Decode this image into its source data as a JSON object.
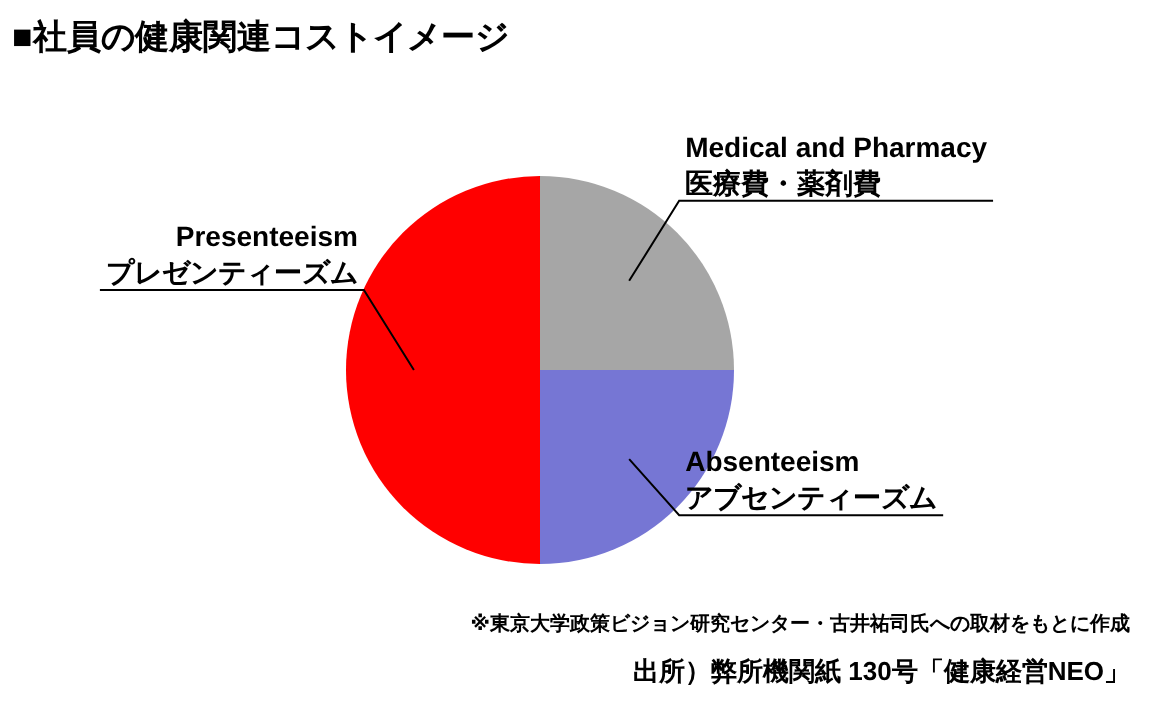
{
  "chart_data": {
    "type": "pie",
    "title": "■社員の健康関連コストイメージ",
    "categories": [
      "Medical and Pharmacy\n医療費・薬剤費",
      "Absenteeism\nアブセンティーズム",
      "Presenteeism\nプレゼンティーズム"
    ],
    "values": [
      25,
      25,
      50
    ],
    "colors": [
      "#a6a6a6",
      "#7676d4",
      "#ff0000"
    ],
    "annotations": [
      "※東京大学政策ビジョン研究センター・古井祐司氏への取材をもとに作成",
      "出所）弊所機関紙 130号「健康経営NEO」"
    ]
  }
}
